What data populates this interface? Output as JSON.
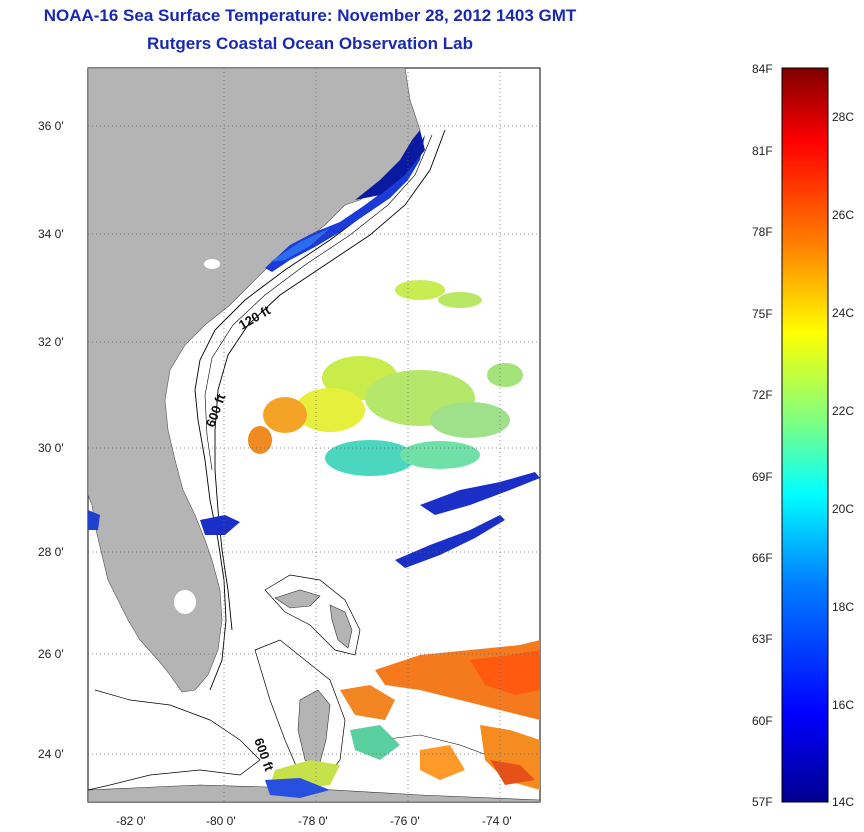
{
  "header": {
    "title": "NOAA-16 Sea Surface Temperature:  November 28, 2012 1403 GMT",
    "subtitle": "Rutgers Coastal Ocean Observation Lab"
  },
  "map": {
    "lat_labels": [
      "36 0'",
      "34 0'",
      "32 0'",
      "30 0'",
      "28 0'",
      "26 0'",
      "24 0'"
    ],
    "lon_labels": [
      "-82 0'",
      "-80 0'",
      "-78 0'",
      "-76 0'",
      "-74 0'"
    ],
    "contour_labels": [
      "120 ft",
      "600 ft",
      "600 ft"
    ],
    "land_color": "#b4b4b4",
    "ocean_color": "#ffffff"
  },
  "colorbar": {
    "fahrenheit_labels": [
      "84F",
      "81F",
      "78F",
      "75F",
      "72F",
      "69F",
      "66F",
      "63F",
      "60F",
      "57F"
    ],
    "celsius_labels": [
      "28C",
      "26C",
      "24C",
      "22C",
      "20C",
      "18C",
      "16C",
      "14C"
    ],
    "colors": [
      "#7f0000",
      "#ff0000",
      "#ff8000",
      "#ffff00",
      "#80ff80",
      "#00ffff",
      "#0080ff",
      "#0000ff",
      "#00008f"
    ]
  }
}
